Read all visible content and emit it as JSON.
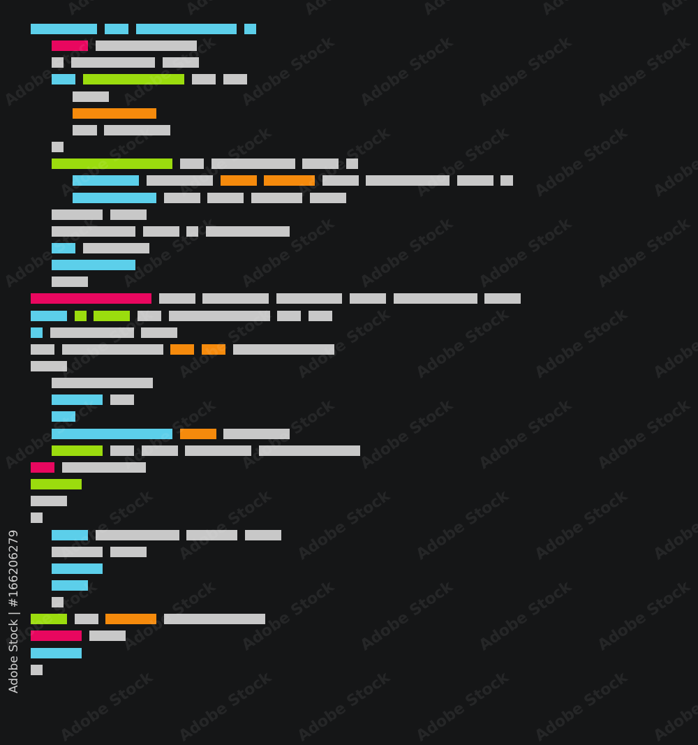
{
  "palette": {
    "background": "#151617",
    "cyan": "#5ccfea",
    "gray": "#c8c8c8",
    "pink": "#e8075f",
    "green": "#9bdc0e",
    "orange": "#f58a0c"
  },
  "watermark": "Adobe Stock",
  "stock_label": "Adobe Stock | #166206279"
}
